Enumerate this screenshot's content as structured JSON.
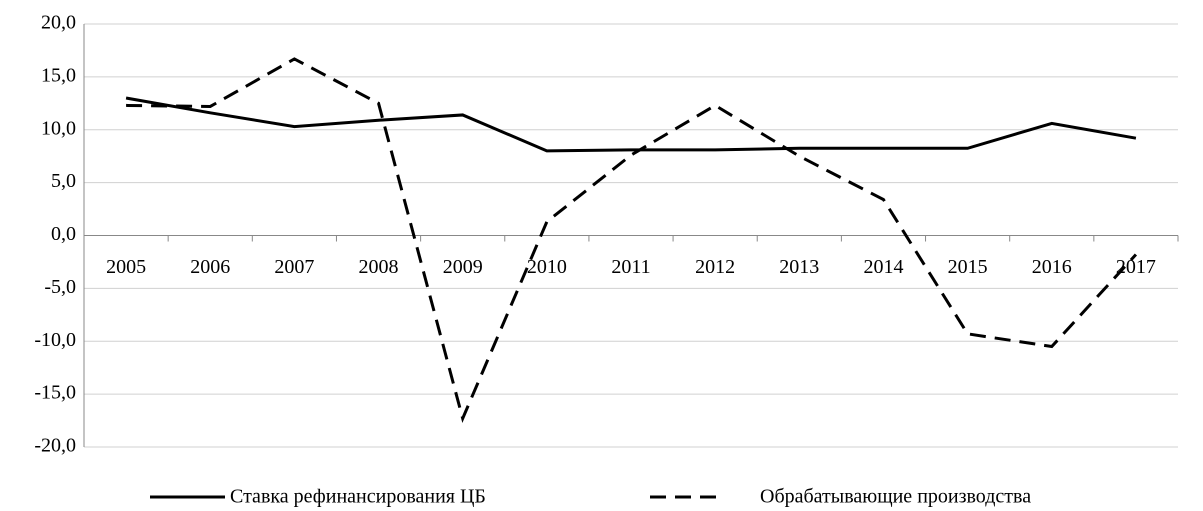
{
  "chart_data": {
    "type": "line",
    "categories": [
      "2005",
      "2006",
      "2007",
      "2008",
      "2009",
      "2010",
      "2011",
      "2012",
      "2013",
      "2014",
      "2015",
      "2016",
      "2017"
    ],
    "series": [
      {
        "name": "Ставка рефинансирования ЦБ",
        "color": "#000000",
        "dash": false,
        "values": [
          13.0,
          11.6,
          10.3,
          10.9,
          11.4,
          8.0,
          8.1,
          8.1,
          8.25,
          8.25,
          8.25,
          10.6,
          9.2
        ]
      },
      {
        "name": "Обрабатывающие производства",
        "color": "#000000",
        "dash": true,
        "values": [
          12.3,
          12.2,
          16.7,
          12.5,
          -17.3,
          1.3,
          7.6,
          12.3,
          7.5,
          3.4,
          -9.3,
          -10.5,
          -1.8
        ]
      }
    ],
    "ylim": [
      -20,
      20
    ],
    "yticks": [
      {
        "value": -20,
        "label": "-20,0"
      },
      {
        "value": -15,
        "label": "-15,0"
      },
      {
        "value": -10,
        "label": "-10,0"
      },
      {
        "value": -5,
        "label": "-5,0"
      },
      {
        "value": 0,
        "label": "0,0"
      },
      {
        "value": 5,
        "label": "5,0"
      },
      {
        "value": 10,
        "label": "10,0"
      },
      {
        "value": 15,
        "label": "15,0"
      },
      {
        "value": 20,
        "label": "20,0"
      }
    ],
    "grid": true,
    "legend": "bottom"
  }
}
